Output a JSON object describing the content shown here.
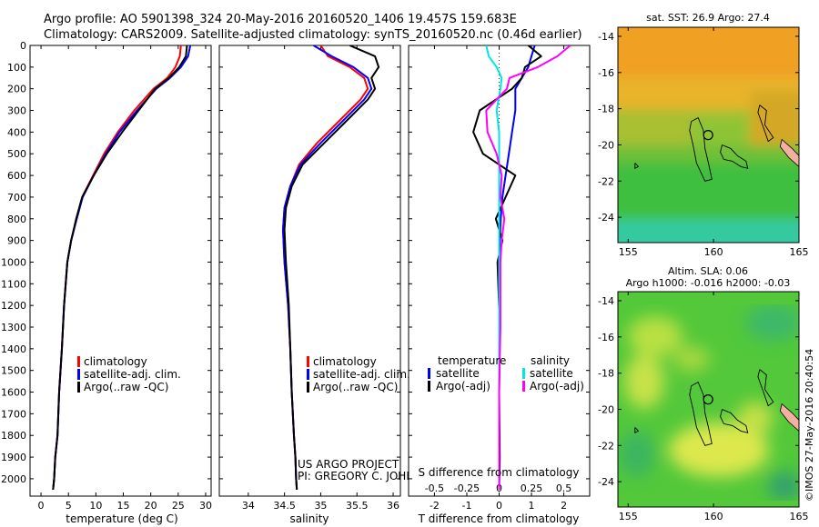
{
  "header": {
    "line1": "Argo profile: AO 5901398_324 20-May-2016 20160520_1406 19.457S 159.683E",
    "line2": "Climatology: CARS2009. Satellite-adjusted climatology: synTS_20160520.nc (0.46d earlier)"
  },
  "colors": {
    "climatology": "#ff0000",
    "satellite": "#0000ff",
    "argo": "#000000",
    "sat_salinity": "#00e5e5",
    "argo_salinity": "#ff00ff"
  },
  "credits": {
    "project": "US ARGO PROJECT",
    "pi": "PI: GREGORY C. JOHNSON"
  },
  "watermark": "©IMOS 27-May-2016 20:40:54",
  "chart_data": [
    {
      "id": "temperature",
      "type": "line",
      "xlabel": "temperature (deg C)",
      "xlim": [
        -2,
        31
      ],
      "xticks": [
        0,
        5,
        10,
        15,
        20,
        25,
        30
      ],
      "ylim": [
        2080,
        0
      ],
      "yticks": [
        0,
        100,
        200,
        300,
        400,
        500,
        600,
        700,
        800,
        900,
        1000,
        1100,
        1200,
        1300,
        1400,
        1500,
        1600,
        1700,
        1800,
        1900,
        2000
      ],
      "legend": [
        "climatology",
        "satellite-adj. clim.",
        "Argo(..raw -QC)"
      ],
      "series": [
        {
          "name": "climatology",
          "color": "#ff0000",
          "x": [
            25.5,
            25.3,
            24.5,
            23,
            20.5,
            17,
            14,
            11.5,
            9.5,
            7.5,
            6.5,
            5.5,
            4.8,
            4.2,
            3.8,
            3.3,
            3,
            2.6,
            2.4,
            2.2
          ],
          "y": [
            0,
            50,
            100,
            150,
            200,
            300,
            400,
            500,
            600,
            700,
            800,
            900,
            1000,
            1200,
            1400,
            1600,
            1800,
            1900,
            2000,
            2050
          ]
        },
        {
          "name": "satellite-adj. clim.",
          "color": "#0000ff",
          "x": [
            27.2,
            26.8,
            25.5,
            23.5,
            21,
            17.5,
            14.3,
            11.8,
            9.6,
            7.6,
            6.5,
            5.5,
            4.8,
            4.2,
            3.8,
            3.3,
            3,
            2.6,
            2.4,
            2.2
          ],
          "y": [
            0,
            50,
            100,
            150,
            200,
            300,
            400,
            500,
            600,
            700,
            800,
            900,
            1000,
            1200,
            1400,
            1600,
            1800,
            1900,
            2000,
            2050
          ]
        },
        {
          "name": "Argo(..raw -QC)",
          "color": "#000000",
          "x": [
            26.6,
            26.4,
            25.2,
            23.3,
            20.8,
            17.8,
            14.8,
            12,
            9.6,
            7.5,
            6.4,
            5.5,
            4.8,
            4.2,
            3.8,
            3.3,
            3,
            2.6,
            2.4,
            2.2
          ],
          "y": [
            0,
            50,
            100,
            150,
            200,
            300,
            400,
            500,
            600,
            700,
            800,
            900,
            1000,
            1200,
            1400,
            1600,
            1800,
            1900,
            2000,
            2050
          ]
        }
      ]
    },
    {
      "id": "salinity",
      "type": "line",
      "xlabel": "salinity",
      "xlim": [
        33.6,
        36.1
      ],
      "xticks": [
        34,
        34.5,
        35,
        35.5,
        36
      ],
      "xticklabels": [
        "34",
        "34.5",
        "35",
        "35.5",
        "36"
      ],
      "ylim": [
        2080,
        0
      ],
      "legend": [
        "climatology",
        "satellite-adj. clim.",
        "Argo(..raw -QC)"
      ],
      "series": [
        {
          "name": "climatology",
          "color": "#ff0000",
          "x": [
            35,
            35.1,
            35.4,
            35.6,
            35.65,
            35.55,
            35.25,
            34.95,
            34.7,
            34.58,
            34.5,
            34.48,
            34.5,
            34.55,
            34.58,
            34.6,
            34.63,
            34.65,
            34.66,
            34.67
          ],
          "y": [
            0,
            50,
            100,
            150,
            200,
            250,
            350,
            450,
            550,
            650,
            750,
            850,
            1000,
            1200,
            1400,
            1600,
            1800,
            1900,
            2000,
            2050
          ]
        },
        {
          "name": "satellite-adj. clim.",
          "color": "#0000ff",
          "x": [
            34.9,
            35.15,
            35.45,
            35.65,
            35.7,
            35.6,
            35.3,
            35,
            34.72,
            34.58,
            34.5,
            34.48,
            34.5,
            34.55,
            34.58,
            34.6,
            34.63,
            34.65,
            34.66,
            34.67
          ],
          "y": [
            0,
            50,
            100,
            150,
            200,
            250,
            350,
            450,
            550,
            650,
            750,
            850,
            1000,
            1200,
            1400,
            1600,
            1800,
            1900,
            2000,
            2050
          ]
        },
        {
          "name": "Argo(..raw -QC)",
          "color": "#000000",
          "x": [
            35.4,
            35.75,
            35.8,
            35.7,
            35.75,
            35.65,
            35.35,
            35.05,
            34.75,
            34.6,
            34.52,
            34.5,
            34.52,
            34.56,
            34.58,
            34.6,
            34.63,
            34.65,
            34.66,
            34.67
          ],
          "y": [
            0,
            50,
            100,
            150,
            200,
            250,
            350,
            450,
            550,
            650,
            750,
            850,
            1000,
            1200,
            1400,
            1600,
            1800,
            1900,
            2000,
            2050
          ]
        }
      ]
    },
    {
      "id": "differences",
      "type": "line",
      "xlabel": "T difference from climatology",
      "xlabel_top": "S difference from climatology",
      "xlim": [
        -2.8,
        2.8
      ],
      "xticks": [
        -2,
        -1,
        0,
        1,
        2
      ],
      "xticks_top": [
        -0.5,
        -0.25,
        0,
        0.25,
        0.5
      ],
      "legend_temperature_title": "temperature",
      "legend_salinity_title": "salinity",
      "legend": [
        "satellite",
        "Argo(-adj)",
        "satellite",
        "Argo(-adj)"
      ],
      "series": [
        {
          "name": "satellite (temperature)",
          "color": "#0000ff",
          "x": [
            1.1,
            1.0,
            0.9,
            0.7,
            0.5,
            0.5,
            0.4,
            0.3,
            0.2,
            0.1,
            0.05,
            0.02,
            0,
            0,
            0,
            0,
            0
          ],
          "y": [
            0,
            50,
            100,
            150,
            200,
            300,
            400,
            500,
            600,
            700,
            800,
            900,
            1000,
            1300,
            1600,
            1900,
            2050
          ]
        },
        {
          "name": "Argo(-adj) (temperature)",
          "color": "#000000",
          "x": [
            0.9,
            1.3,
            0.8,
            0.7,
            0.4,
            -0.6,
            -0.8,
            -0.5,
            0.5,
            0.2,
            -0.1,
            0.1,
            -0.05,
            0.02,
            0,
            0.02,
            0
          ],
          "y": [
            0,
            50,
            100,
            150,
            200,
            300,
            400,
            500,
            600,
            700,
            800,
            900,
            1000,
            1300,
            1600,
            1900,
            2050
          ]
        },
        {
          "name": "satellite (salinity)",
          "color": "#00e5e5",
          "x": [
            -0.1,
            -0.08,
            -0.02,
            0.02,
            0.01,
            -0.02,
            0,
            0,
            0,
            0,
            0,
            0,
            0,
            0,
            0,
            0,
            0
          ],
          "y": [
            0,
            50,
            100,
            150,
            200,
            300,
            400,
            500,
            600,
            700,
            800,
            900,
            1000,
            1300,
            1600,
            1900,
            2050
          ]
        },
        {
          "name": "Argo(-adj) (salinity)",
          "color": "#ff00ff",
          "x": [
            0.55,
            0.45,
            0.3,
            0.08,
            0.06,
            -0.1,
            -0.09,
            -0.02,
            0.02,
            0.01,
            0.04,
            0.02,
            0.01,
            0.01,
            0,
            0,
            0
          ],
          "y": [
            0,
            50,
            100,
            150,
            200,
            300,
            400,
            500,
            600,
            700,
            800,
            900,
            1000,
            1300,
            1600,
            1900,
            2050
          ]
        }
      ]
    },
    {
      "id": "sst-map",
      "type": "heatmap",
      "title": "sat. SST: 26.9 Argo: 27.4",
      "xticks": [
        155,
        160,
        165
      ],
      "yticks": [
        -14,
        -16,
        -18,
        -20,
        -22,
        -24
      ],
      "xlim": [
        154.4,
        165
      ],
      "ylim": [
        -25.4,
        -13.5
      ],
      "argo_position": [
        159.683,
        -19.457
      ]
    },
    {
      "id": "sla-map",
      "type": "heatmap",
      "title_line1": "Altim. SLA: 0.06",
      "title_line2": "Argo h1000: -0.016 h2000: -0.03",
      "xticks": [
        155,
        160,
        165
      ],
      "yticks": [
        -14,
        -16,
        -18,
        -20,
        -22,
        -24
      ],
      "xlim": [
        154.4,
        165
      ],
      "ylim": [
        -25.4,
        -13.5
      ],
      "argo_position": [
        159.683,
        -19.457
      ]
    }
  ]
}
